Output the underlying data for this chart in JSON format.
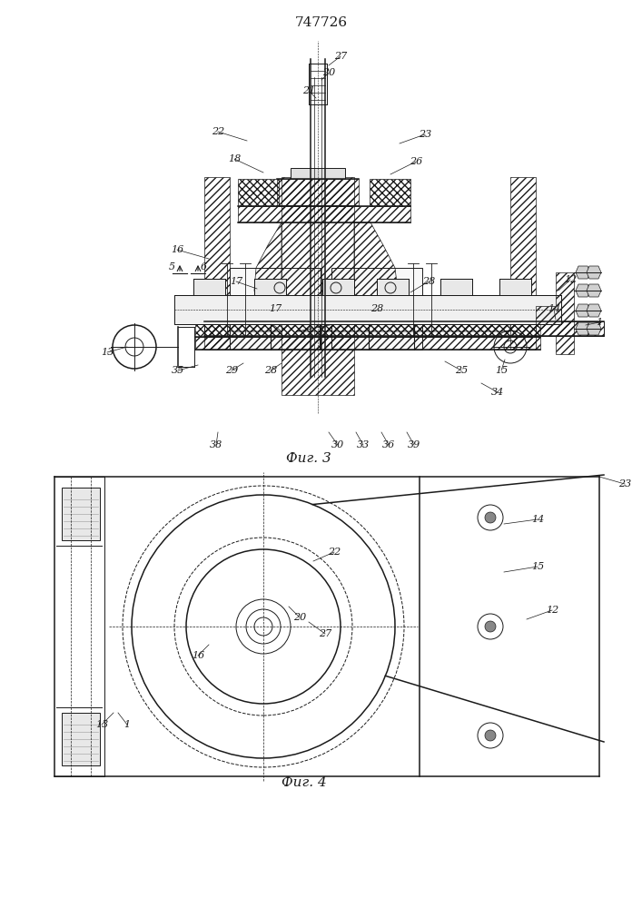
{
  "title": "747726",
  "fig3_caption": "Фиг. 3",
  "fig4_caption": "Фиг. 4",
  "bg_color": "#ffffff",
  "line_color": "#1a1a1a"
}
